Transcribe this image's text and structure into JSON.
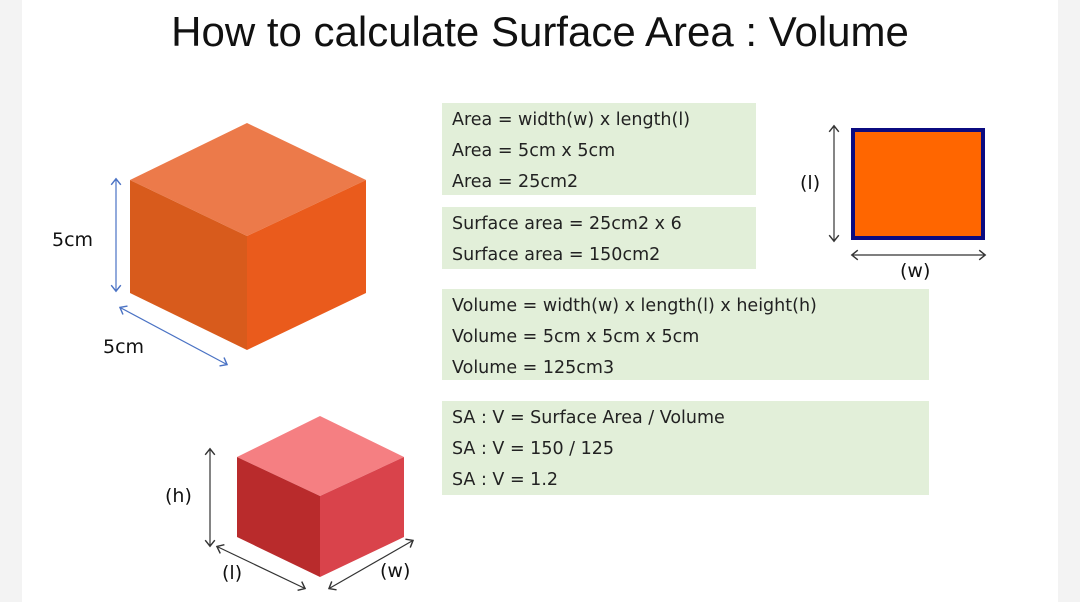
{
  "title": "How to calculate Surface Area : Volume",
  "colors": {
    "box_bg": "#e2efd9",
    "square_fill": "#ff6600",
    "square_border": "#000080",
    "big_cube": "#e85a1c",
    "small_cube": "#d9434b"
  },
  "big_cube": {
    "height_label": "5cm",
    "depth_label": "5cm"
  },
  "small_cube": {
    "height_label": "(h)",
    "length_label": "(l)",
    "width_label": "(w)"
  },
  "square": {
    "length_label": "(l)",
    "width_label": "(w)"
  },
  "boxes": {
    "area": [
      "Area = width(w) x length(l)",
      "Area = 5cm x 5cm",
      "Area = 25cm2"
    ],
    "surface": [
      "Surface area = 25cm2 x 6",
      "Surface area = 150cm2"
    ],
    "volume": [
      "Volume = width(w) x length(l) x height(h)",
      "Volume = 5cm x 5cm x 5cm",
      "Volume = 125cm3"
    ],
    "ratio": [
      "SA : V = Surface Area / Volume",
      "SA : V = 150 / 125",
      "SA : V = 1.2"
    ]
  }
}
